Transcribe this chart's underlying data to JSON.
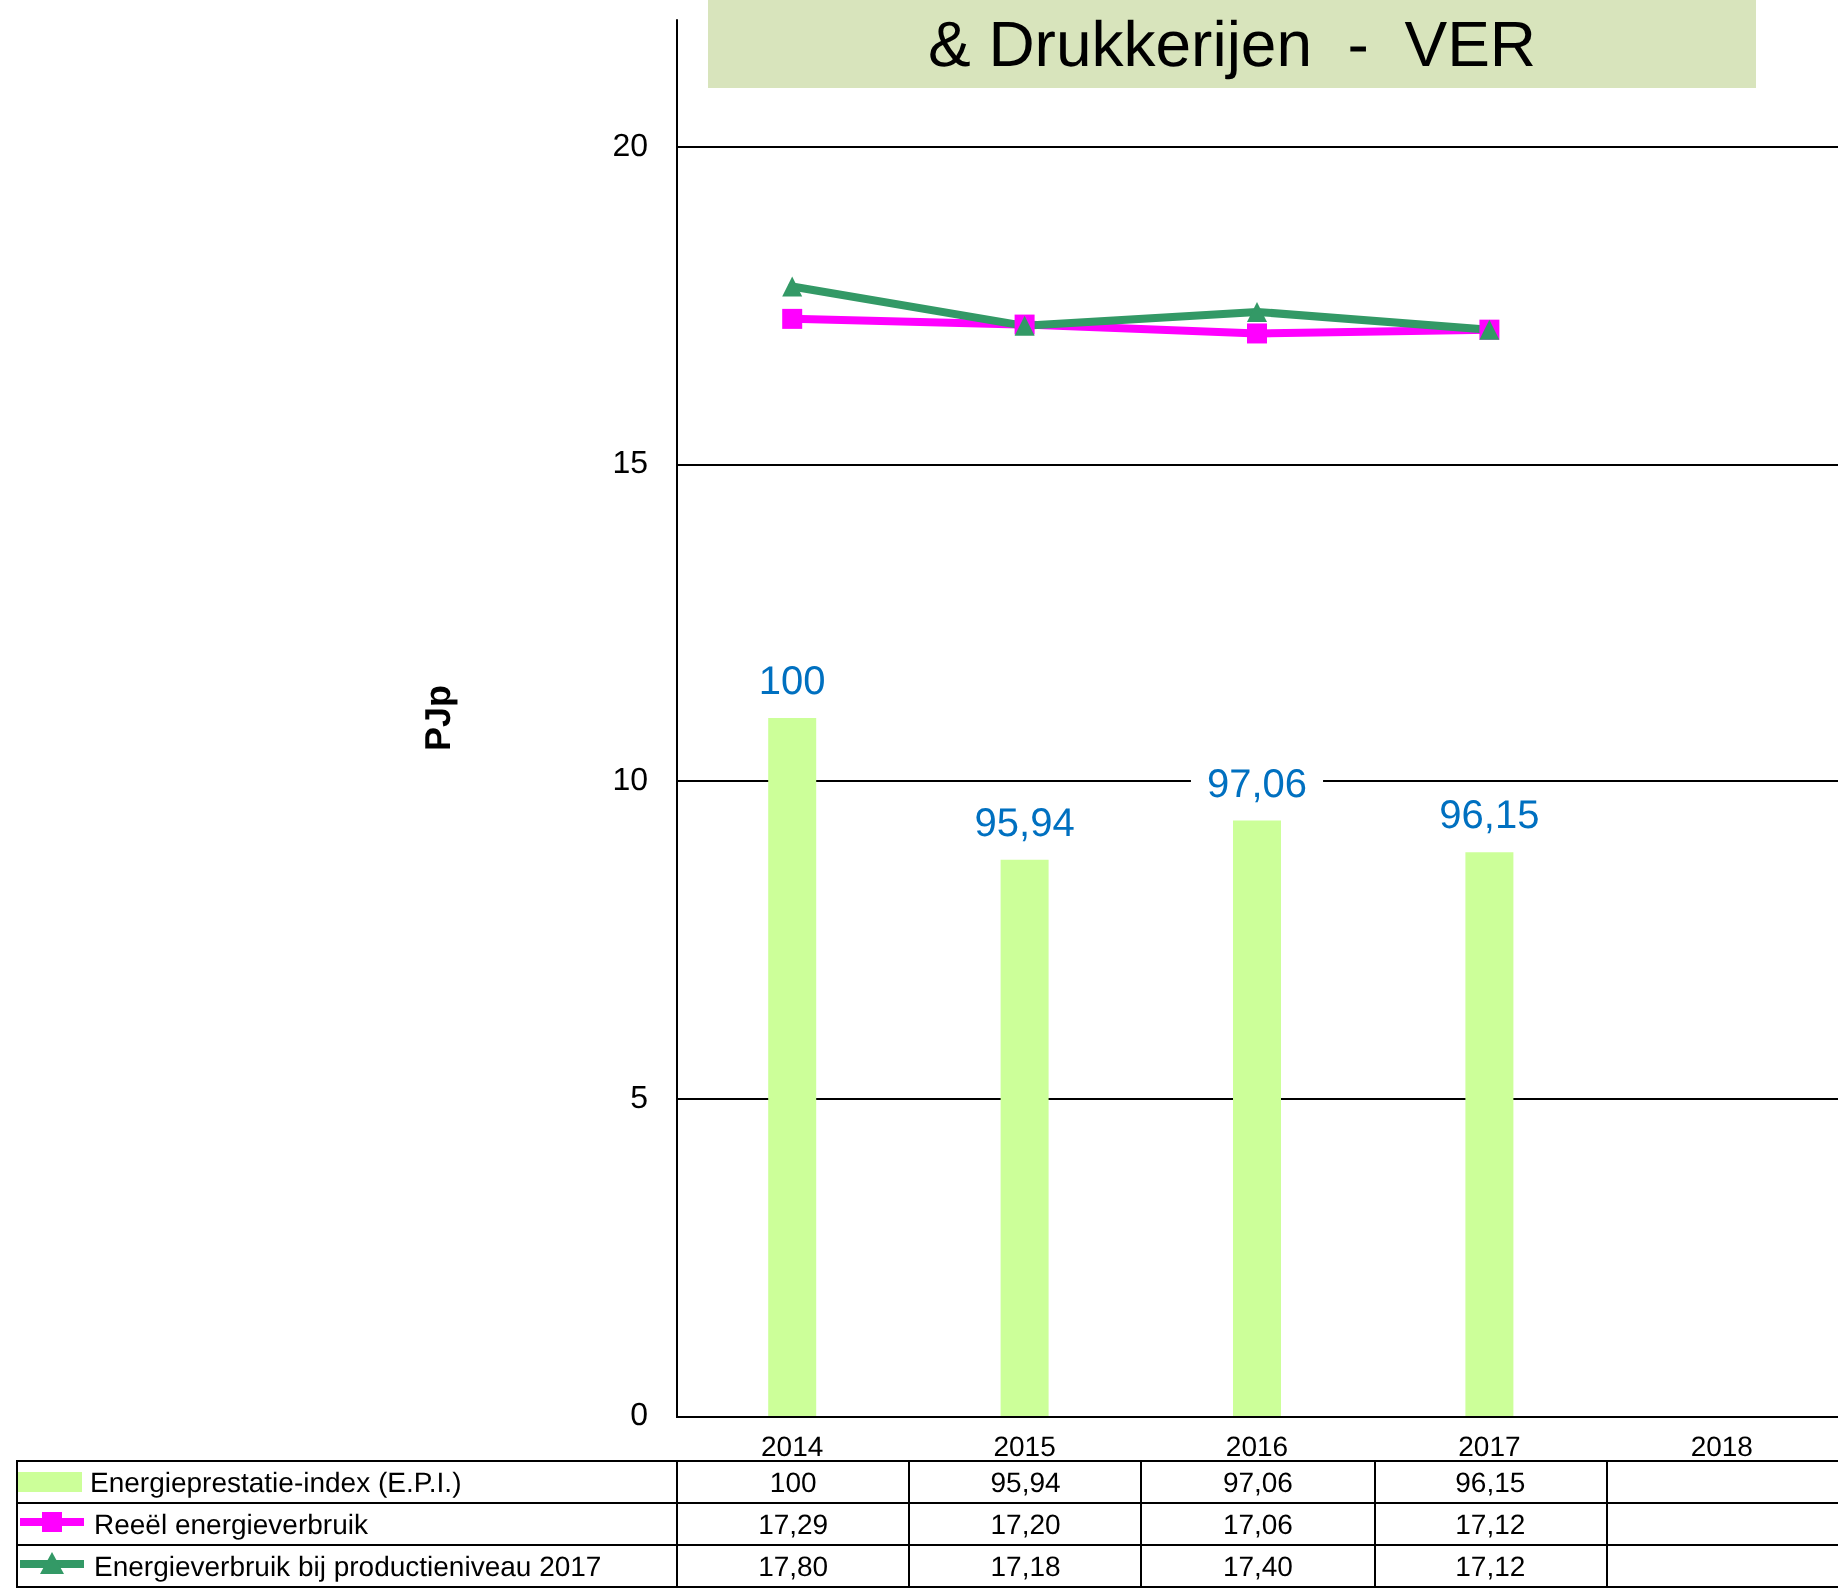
{
  "chart_data": {
    "type": "bar",
    "title": "& Drukkerijen  -  VER",
    "ylabel": "PJp",
    "categories": [
      "2014",
      "2015",
      "2016",
      "2017",
      "2018"
    ],
    "series": [
      {
        "name": "Energieprestatie-index (E.P.I.)",
        "axis": "y2",
        "color": "#ccff99",
        "values": [
          100,
          95.94,
          97.06,
          96.15,
          null
        ],
        "value_labels": [
          "100",
          "95,94",
          "97,06",
          "96,15",
          null
        ]
      },
      {
        "name": "Reeël energieverbruik",
        "type": "line",
        "color": "#ff00ff",
        "marker": "square",
        "values": [
          17.29,
          17.2,
          17.06,
          17.12,
          null
        ],
        "value_labels": [
          "17,29",
          "17,20",
          "17,06",
          "17,12",
          null
        ]
      },
      {
        "name": "Energieverbruik bij productieniveau 2017",
        "type": "line",
        "color": "#339966",
        "marker": "triangle",
        "values": [
          17.8,
          17.18,
          17.4,
          17.12,
          null
        ],
        "value_labels": [
          "17,80",
          "17,18",
          "17,40",
          "17,12",
          null
        ]
      }
    ],
    "ylim": [
      0,
      22
    ],
    "yticks": [
      0,
      5,
      10,
      15,
      20
    ],
    "y2lim": [
      80,
      120
    ],
    "grid": "y",
    "legend": "bottom",
    "data_labels": true
  }
}
